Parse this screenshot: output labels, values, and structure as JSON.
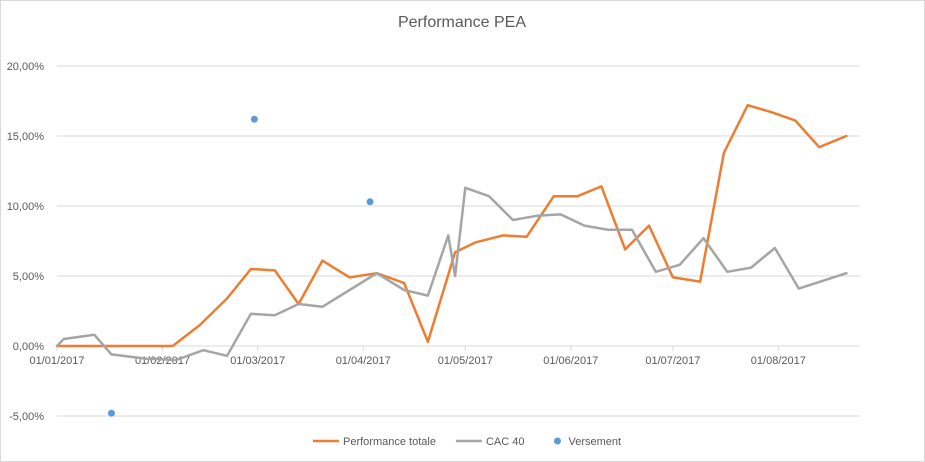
{
  "chart_data": {
    "type": "line",
    "title": "Performance PEA",
    "xlabel": "",
    "ylabel": "",
    "ylim": [
      -0.05,
      0.2
    ],
    "y_ticks": [
      -0.05,
      0,
      0.05,
      0.1,
      0.15,
      0.2
    ],
    "y_tick_labels": [
      "-5,00%",
      "0,00%",
      "5,00%",
      "10,00%",
      "15,00%",
      "20,00%"
    ],
    "xlim": [
      "2017-01-01",
      "2017-08-25"
    ],
    "x_ticks": [
      "2017-01-01",
      "2017-02-01",
      "2017-03-01",
      "2017-04-01",
      "2017-05-01",
      "2017-06-01",
      "2017-07-01",
      "2017-08-01"
    ],
    "x_tick_labels": [
      "01/01/2017",
      "01/02/2017",
      "01/03/2017",
      "01/04/2017",
      "01/05/2017",
      "01/06/2017",
      "01/07/2017",
      "01/08/2017"
    ],
    "grid": true,
    "legend_position": "bottom",
    "colors": {
      "performance": "#ED7D31",
      "cac40": "#A5A5A5",
      "versement": "#5B9BD5",
      "grid": "#D9D9D9"
    },
    "series": [
      {
        "name": "Performance totale",
        "kind": "line",
        "color": "#ED7D31",
        "points": [
          [
            "2017-01-01",
            0.0
          ],
          [
            "2017-01-12",
            0.0
          ],
          [
            "2017-01-20",
            0.0
          ],
          [
            "2017-01-27",
            0.0
          ],
          [
            "2017-02-04",
            0.0
          ],
          [
            "2017-02-12",
            0.015
          ],
          [
            "2017-02-20",
            0.034
          ],
          [
            "2017-02-27",
            0.055
          ],
          [
            "2017-03-06",
            0.054
          ],
          [
            "2017-03-13",
            0.03
          ],
          [
            "2017-03-20",
            0.061
          ],
          [
            "2017-03-28",
            0.049
          ],
          [
            "2017-04-05",
            0.052
          ],
          [
            "2017-04-13",
            0.045
          ],
          [
            "2017-04-20",
            0.003
          ],
          [
            "2017-04-28",
            0.067
          ],
          [
            "2017-05-04",
            0.074
          ],
          [
            "2017-05-12",
            0.079
          ],
          [
            "2017-05-19",
            0.078
          ],
          [
            "2017-05-27",
            0.107
          ],
          [
            "2017-06-03",
            0.107
          ],
          [
            "2017-06-10",
            0.114
          ],
          [
            "2017-06-17",
            0.069
          ],
          [
            "2017-06-24",
            0.086
          ],
          [
            "2017-07-01",
            0.049
          ],
          [
            "2017-07-09",
            0.046
          ],
          [
            "2017-07-16",
            0.138
          ],
          [
            "2017-07-23",
            0.172
          ],
          [
            "2017-07-30",
            0.167
          ],
          [
            "2017-08-06",
            0.161
          ],
          [
            "2017-08-13",
            0.142
          ],
          [
            "2017-08-21",
            0.15
          ]
        ]
      },
      {
        "name": "CAC 40",
        "kind": "line",
        "color": "#A5A5A5",
        "points": [
          [
            "2017-01-01",
            0.0
          ],
          [
            "2017-01-03",
            0.005
          ],
          [
            "2017-01-12",
            0.008
          ],
          [
            "2017-01-17",
            -0.006
          ],
          [
            "2017-01-27",
            -0.009
          ],
          [
            "2017-02-05",
            -0.01
          ],
          [
            "2017-02-13",
            -0.003
          ],
          [
            "2017-02-20",
            -0.007
          ],
          [
            "2017-02-27",
            0.023
          ],
          [
            "2017-03-06",
            0.022
          ],
          [
            "2017-03-13",
            0.03
          ],
          [
            "2017-03-20",
            0.028
          ],
          [
            "2017-03-28",
            0.04
          ],
          [
            "2017-04-05",
            0.052
          ],
          [
            "2017-04-13",
            0.04
          ],
          [
            "2017-04-20",
            0.036
          ],
          [
            "2017-04-26",
            0.079
          ],
          [
            "2017-04-28",
            0.05
          ],
          [
            "2017-05-01",
            0.113
          ],
          [
            "2017-05-08",
            0.107
          ],
          [
            "2017-05-15",
            0.09
          ],
          [
            "2017-05-22",
            0.093
          ],
          [
            "2017-05-29",
            0.094
          ],
          [
            "2017-06-05",
            0.086
          ],
          [
            "2017-06-12",
            0.083
          ],
          [
            "2017-06-19",
            0.083
          ],
          [
            "2017-06-26",
            0.053
          ],
          [
            "2017-07-03",
            0.058
          ],
          [
            "2017-07-10",
            0.077
          ],
          [
            "2017-07-17",
            0.053
          ],
          [
            "2017-07-24",
            0.056
          ],
          [
            "2017-07-31",
            0.07
          ],
          [
            "2017-08-07",
            0.041
          ],
          [
            "2017-08-21",
            0.052
          ]
        ]
      },
      {
        "name": "Versement",
        "kind": "scatter",
        "color": "#5B9BD5",
        "points": [
          [
            "2017-01-17",
            -0.048
          ],
          [
            "2017-02-28",
            0.162
          ],
          [
            "2017-04-03",
            0.103
          ]
        ]
      }
    ]
  }
}
